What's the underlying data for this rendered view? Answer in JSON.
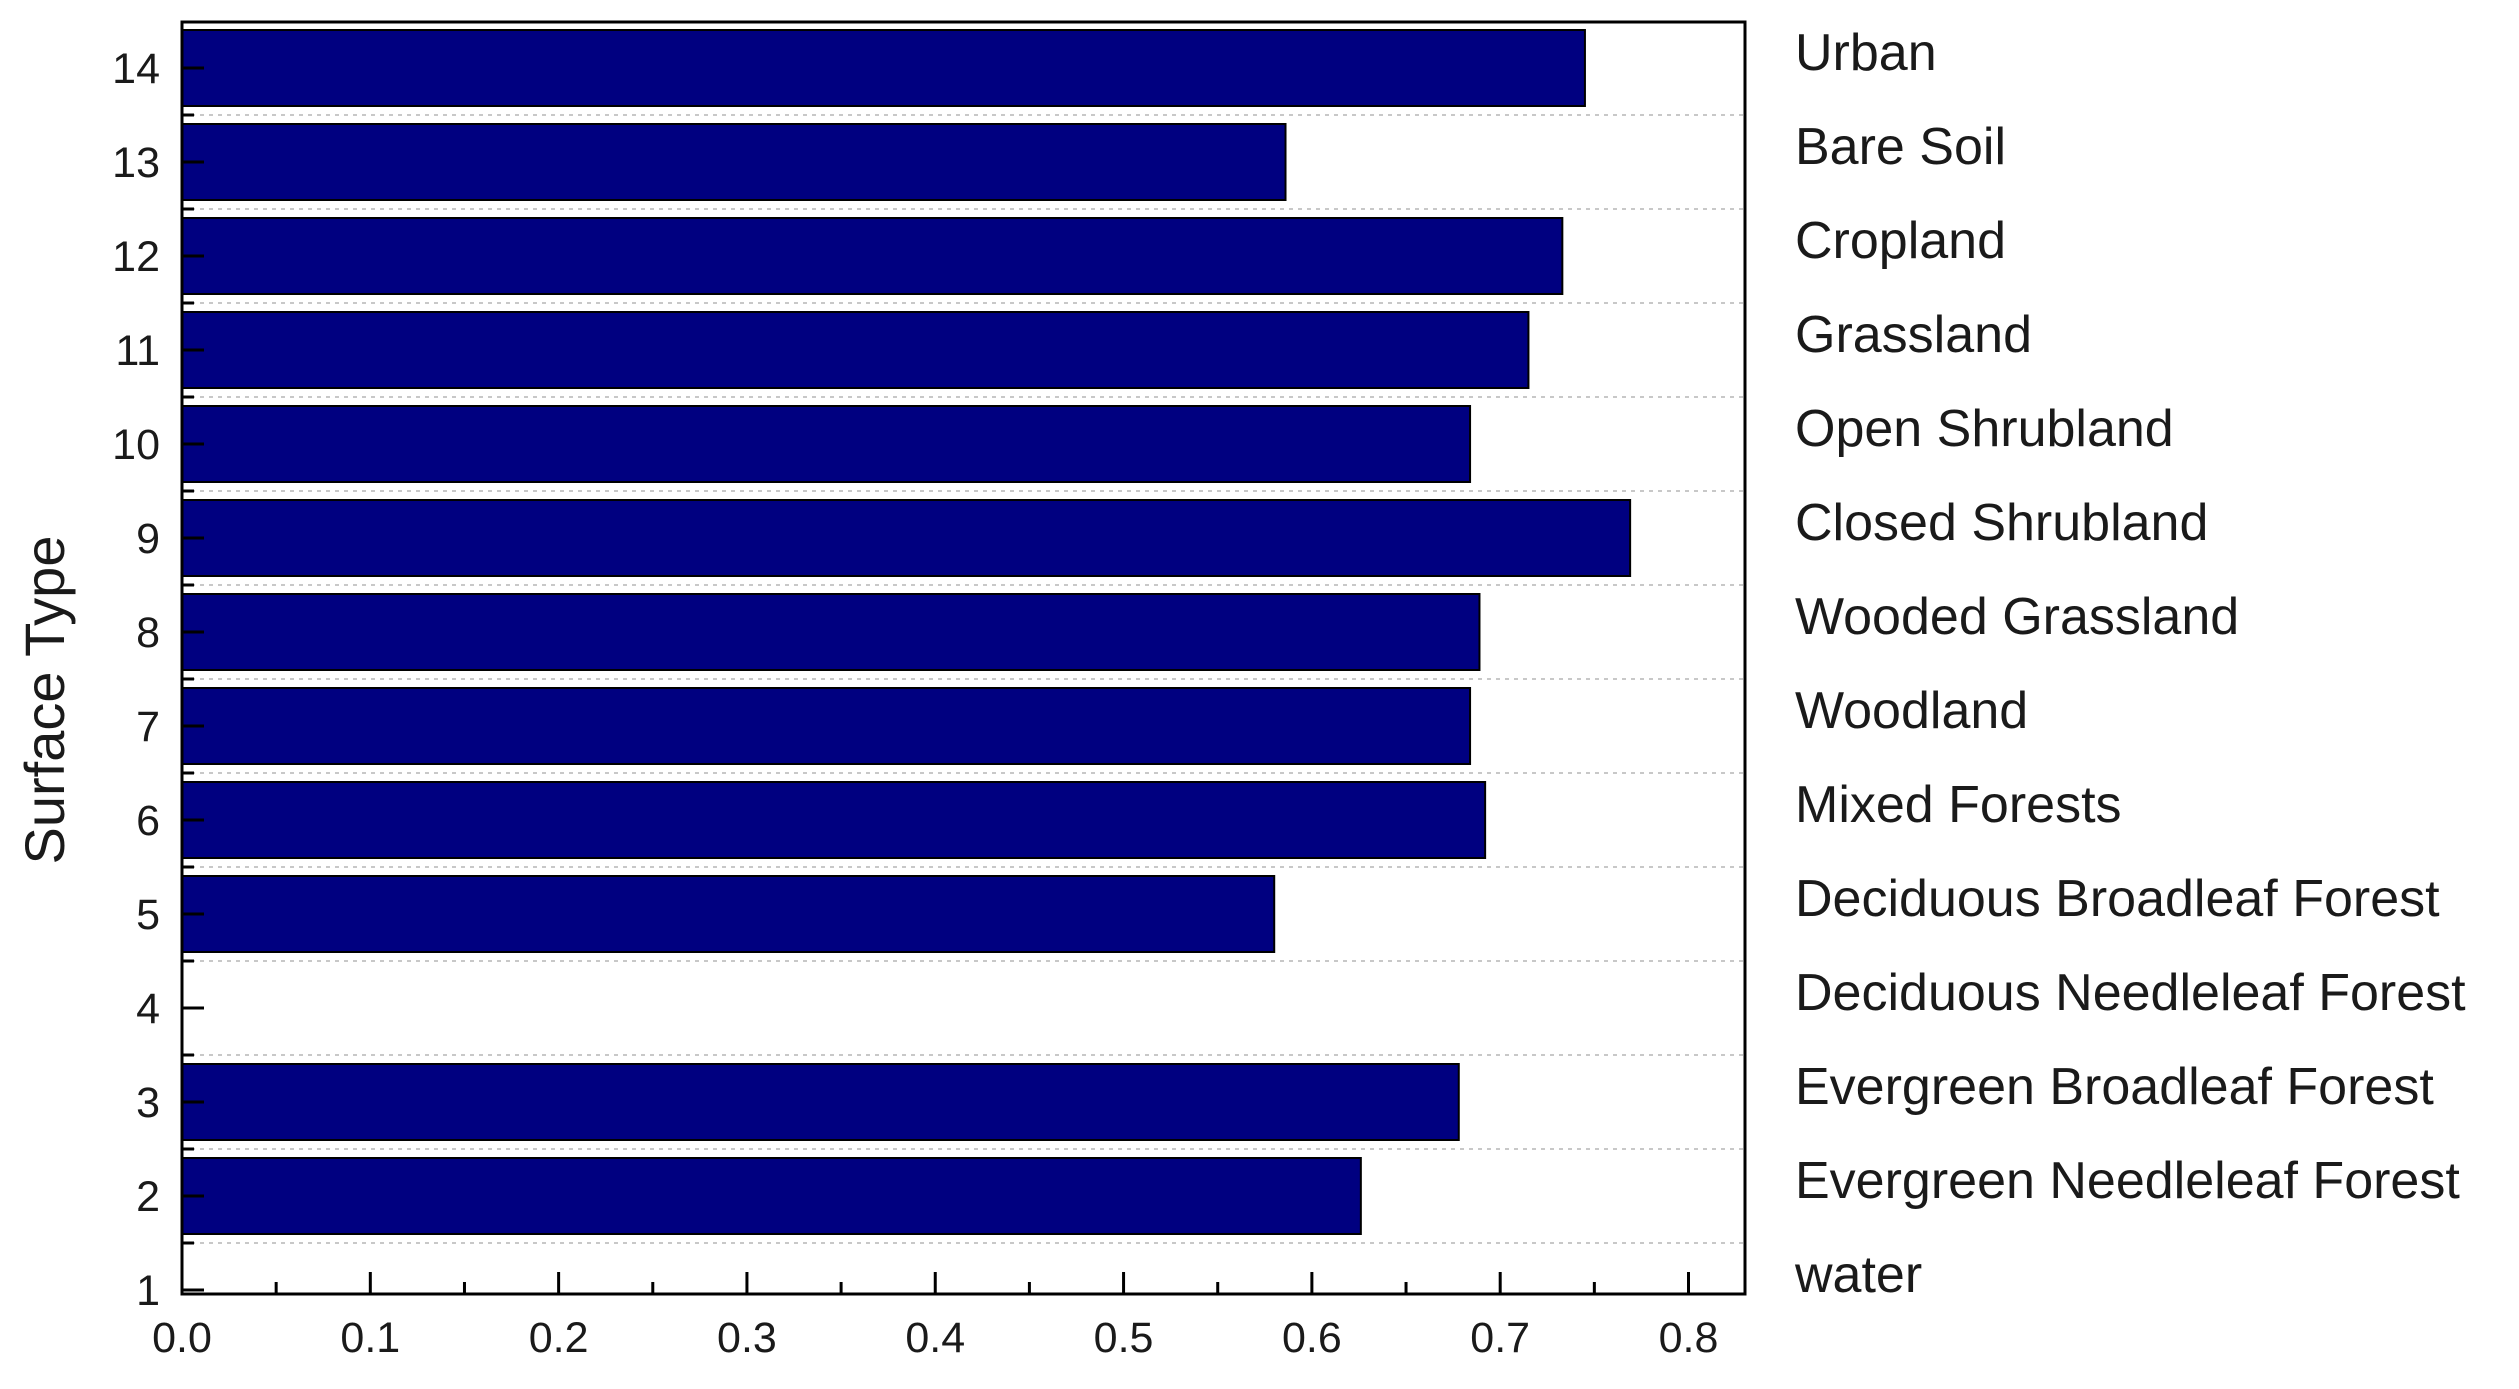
{
  "chart_data": {
    "type": "bar",
    "orientation": "horizontal",
    "title": "",
    "xlabel": "",
    "ylabel": "Surface Type",
    "xlim": [
      0,
      0.83
    ],
    "ylim": [
      1,
      14
    ],
    "grid": "horizontal-dotted",
    "x_ticks": [
      "0.0",
      "0.1",
      "0.2",
      "0.3",
      "0.4",
      "0.5",
      "0.6",
      "0.7",
      "0.8"
    ],
    "x_tick_values": [
      0,
      0.1,
      0.2,
      0.3,
      0.4,
      0.5,
      0.6,
      0.7,
      0.8
    ],
    "categories": [
      "14",
      "13",
      "12",
      "11",
      "10",
      "9",
      "8",
      "7",
      "6",
      "5",
      "4",
      "3",
      "2",
      "1"
    ],
    "category_positions": [
      14,
      13,
      12,
      11,
      10,
      9,
      8,
      7,
      6,
      5,
      4,
      3,
      2,
      1
    ],
    "category_names": [
      "Urban",
      "Bare Soil",
      "Cropland",
      "Grassland",
      "Open Shrubland",
      "Closed Shrubland",
      "Wooded Grassland",
      "Woodland",
      "Mixed Forests",
      "Deciduous Broadleaf Forest",
      "Deciduous Needleleaf Forest",
      "Evergreen Broadleaf Forest",
      "Evergreen Needleleaf Forest",
      "water"
    ],
    "values": [
      0.745,
      0.586,
      0.733,
      0.715,
      0.684,
      0.769,
      0.689,
      0.684,
      0.692,
      0.58,
      null,
      0.678,
      0.626,
      null
    ],
    "bar_color": "#000080",
    "bar_edge_color": "#000000"
  }
}
